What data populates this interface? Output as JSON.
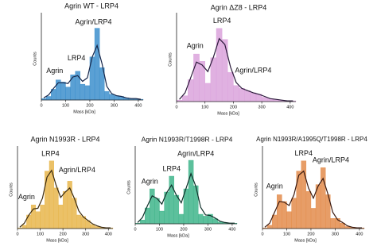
{
  "chart_data": [
    {
      "type": "histogram",
      "title": "Agrin WT - LRP4",
      "xlabel": "Mass [kDa]",
      "ylabel": "Counts",
      "color": "#3d8fcc",
      "fit_color": "#16264a",
      "bins": [
        0,
        20,
        40,
        60,
        80,
        100,
        120,
        140,
        160,
        180,
        200,
        220,
        240,
        260,
        280,
        300,
        320,
        340,
        360,
        380,
        400,
        420
      ],
      "values": [
        2,
        5,
        15,
        28,
        25,
        18,
        35,
        40,
        22,
        20,
        60,
        100,
        45,
        12,
        8,
        6,
        5,
        3,
        2,
        2,
        1
      ],
      "fit": {
        "x": [
          10,
          30,
          50,
          70,
          90,
          110,
          130,
          150,
          170,
          190,
          210,
          230,
          250,
          270,
          290,
          310,
          330,
          350,
          370,
          390,
          410
        ],
        "values": [
          3,
          7,
          16,
          24,
          24,
          23,
          32,
          34,
          26,
          31,
          60,
          76,
          51,
          19,
          9,
          6,
          5,
          3,
          2,
          2,
          1
        ]
      },
      "xlim": [
        0,
        420
      ],
      "ylim": [
        0,
        115
      ],
      "xticks": [
        0,
        100,
        200,
        300,
        400
      ],
      "annotations": [
        "Agrin",
        "LRP4",
        "Agrin/LRP4"
      ]
    },
    {
      "type": "histogram",
      "title": "Agrin ΔZ8 - LRP4",
      "xlabel": "Mass [kDa]",
      "ylabel": "Counts",
      "color": "#dba3dc",
      "fit_color": "#2a1a3a",
      "bins": [
        0,
        20,
        40,
        60,
        80,
        100,
        120,
        140,
        160,
        180,
        200,
        220,
        240,
        260,
        280,
        300,
        320,
        340,
        360,
        380,
        400,
        420
      ],
      "values": [
        2,
        8,
        30,
        65,
        55,
        25,
        60,
        100,
        85,
        40,
        22,
        18,
        15,
        12,
        10,
        6,
        4,
        3,
        2,
        1,
        1
      ],
      "fit": {
        "x": [
          10,
          30,
          50,
          70,
          90,
          110,
          130,
          150,
          170,
          190,
          210,
          230,
          250,
          270,
          290,
          310,
          330,
          350,
          370,
          390,
          410
        ],
        "values": [
          3,
          12,
          33,
          54,
          50,
          41,
          61,
          86,
          78,
          47,
          26,
          18,
          15,
          12,
          10,
          7,
          4,
          3,
          2,
          1,
          1
        ]
      },
      "xlim": [
        0,
        420
      ],
      "ylim": [
        0,
        115
      ],
      "xticks": [
        0,
        100,
        200,
        300,
        400
      ],
      "annotations": [
        "Agrin",
        "LRP4",
        "Agrin/LRP4"
      ]
    },
    {
      "type": "histogram",
      "title": "Agrin N1993R - LRP4",
      "xlabel": "Mass [kDa]",
      "ylabel": "Counts",
      "color": "#e8b64c",
      "fit_color": "#3a2a10",
      "bins": [
        0,
        20,
        40,
        60,
        80,
        100,
        120,
        140,
        160,
        180,
        200,
        220,
        240,
        260,
        280,
        300,
        320,
        340,
        360,
        380,
        400,
        420
      ],
      "values": [
        1,
        5,
        20,
        35,
        25,
        35,
        85,
        100,
        60,
        35,
        55,
        70,
        45,
        20,
        18,
        12,
        6,
        3,
        2,
        1,
        1
      ],
      "fit": {
        "x": [
          10,
          30,
          50,
          70,
          90,
          110,
          130,
          150,
          170,
          190,
          210,
          230,
          250,
          270,
          290,
          310,
          330,
          350,
          370,
          390,
          410
        ],
        "values": [
          2,
          8,
          20,
          29,
          30,
          45,
          76,
          86,
          64,
          46,
          54,
          60,
          45,
          26,
          17,
          12,
          7,
          4,
          2,
          1,
          1
        ]
      },
      "xlim": [
        0,
        420
      ],
      "ylim": [
        0,
        115
      ],
      "xticks": [
        0,
        100,
        200,
        300,
        400
      ],
      "annotations": [
        "Agrin",
        "LRP4",
        "Agrin/LRP4"
      ]
    },
    {
      "type": "histogram",
      "title": "Agrin N1993R/T1998R - LRP4",
      "xlabel": "Mass [kDa]",
      "ylabel": "Counts",
      "color": "#3fb58b",
      "fit_color": "#10302a",
      "bins": [
        0,
        20,
        40,
        60,
        80,
        100,
        120,
        140,
        160,
        180,
        200,
        220,
        240,
        260,
        280,
        300,
        320,
        340,
        360,
        380,
        400,
        420
      ],
      "values": [
        1,
        6,
        25,
        55,
        40,
        20,
        50,
        75,
        45,
        15,
        55,
        100,
        60,
        15,
        12,
        15,
        8,
        3,
        2,
        1,
        1
      ],
      "fit": {
        "x": [
          10,
          30,
          50,
          70,
          90,
          110,
          130,
          150,
          170,
          190,
          210,
          230,
          250,
          270,
          290,
          310,
          330,
          350,
          370,
          390,
          410
        ],
        "values": [
          2,
          10,
          28,
          44,
          40,
          31,
          49,
          61,
          45,
          33,
          56,
          79,
          59,
          26,
          14,
          13,
          9,
          4,
          2,
          1,
          1
        ]
      },
      "xlim": [
        0,
        420
      ],
      "ylim": [
        0,
        115
      ],
      "xticks": [
        0,
        100,
        200,
        300,
        400
      ],
      "annotations": [
        "Agrin",
        "LRP4",
        "Agrin/LRP4"
      ]
    },
    {
      "type": "histogram",
      "title": "Agrin N1993R/A1995Q/T1998R - LRP4",
      "xlabel": "Mass [kDa]",
      "ylabel": "Counts",
      "color": "#e38c4c",
      "fit_color": "#3a1a10",
      "bins": [
        0,
        20,
        40,
        60,
        80,
        100,
        120,
        140,
        160,
        180,
        200,
        220,
        240,
        260,
        280,
        300,
        320,
        340,
        360,
        380,
        400,
        420
      ],
      "values": [
        1,
        5,
        20,
        50,
        40,
        25,
        45,
        85,
        100,
        55,
        30,
        65,
        90,
        50,
        15,
        15,
        8,
        3,
        2,
        1,
        1
      ],
      "fit": {
        "x": [
          10,
          30,
          50,
          70,
          90,
          110,
          130,
          150,
          170,
          190,
          210,
          230,
          250,
          270,
          290,
          310,
          330,
          350,
          370,
          390,
          410
        ],
        "values": [
          2,
          8,
          24,
          40,
          39,
          34,
          50,
          79,
          85,
          60,
          45,
          63,
          74,
          51,
          24,
          13,
          9,
          4,
          2,
          1,
          1
        ]
      },
      "xlim": [
        0,
        420
      ],
      "ylim": [
        0,
        115
      ],
      "xticks": [
        0,
        100,
        200,
        300,
        400
      ],
      "annotations": [
        "Agrin",
        "LRP4",
        "Agrin/LRP4"
      ]
    }
  ]
}
